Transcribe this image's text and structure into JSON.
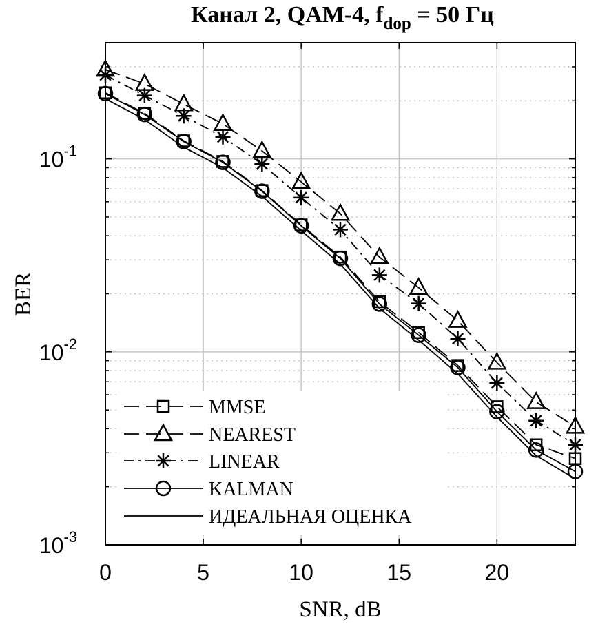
{
  "chart_data": {
    "type": "line",
    "title": "Канал 2, QAM-4, f",
    "title_sub": "dop",
    "title_tail": " = 50 Гц",
    "xlabel": "SNR, dB",
    "ylabel": "BER",
    "xlim": [
      0,
      24
    ],
    "ylim": [
      0.001,
      0.4
    ],
    "yscale": "log",
    "grid": true,
    "legend_position": "bottom-left",
    "x_ticks": [
      0,
      5,
      10,
      15,
      20
    ],
    "x_tick_labels": [
      "0",
      "5",
      "10",
      "15",
      "20"
    ],
    "y_ticks": [
      {
        "value": 0.001,
        "base": "10",
        "exp": "-3"
      },
      {
        "value": 0.01,
        "base": "10",
        "exp": "-2"
      },
      {
        "value": 0.1,
        "base": "10",
        "exp": "-1"
      }
    ],
    "x": [
      0,
      2,
      4,
      6,
      8,
      10,
      12,
      14,
      16,
      18,
      20,
      22,
      24
    ],
    "series": [
      {
        "name": "MMSE",
        "marker": "square",
        "dash": "long-dash",
        "values": [
          0.22,
          0.172,
          0.124,
          0.097,
          0.0685,
          0.0455,
          0.031,
          0.0182,
          0.0126,
          0.0085,
          0.0052,
          0.0033,
          0.0028
        ]
      },
      {
        "name": "NEAREST",
        "marker": "triangle",
        "dash": "long-dash",
        "values": [
          0.29,
          0.245,
          0.192,
          0.152,
          0.11,
          0.076,
          0.052,
          0.031,
          0.0215,
          0.0145,
          0.0088,
          0.0055,
          0.0041
        ]
      },
      {
        "name": "LINEAR",
        "marker": "asterisk",
        "dash": "dash-dot",
        "values": [
          0.272,
          0.213,
          0.167,
          0.13,
          0.094,
          0.063,
          0.043,
          0.025,
          0.0178,
          0.0117,
          0.0069,
          0.0044,
          0.0033
        ]
      },
      {
        "name": "KALMAN",
        "marker": "circle",
        "dash": "solid",
        "values": [
          0.218,
          0.17,
          0.123,
          0.096,
          0.068,
          0.045,
          0.0305,
          0.0177,
          0.0122,
          0.0083,
          0.0049,
          0.0031,
          0.0024
        ]
      },
      {
        "name": "ИДЕАЛЬНАЯ ОЦЕНКА",
        "marker": "none",
        "dash": "solid",
        "values": [
          0.205,
          0.16,
          0.115,
          0.09,
          0.064,
          0.0425,
          0.0285,
          0.0168,
          0.0115,
          0.0077,
          0.0046,
          0.0029,
          0.0022
        ]
      }
    ]
  }
}
